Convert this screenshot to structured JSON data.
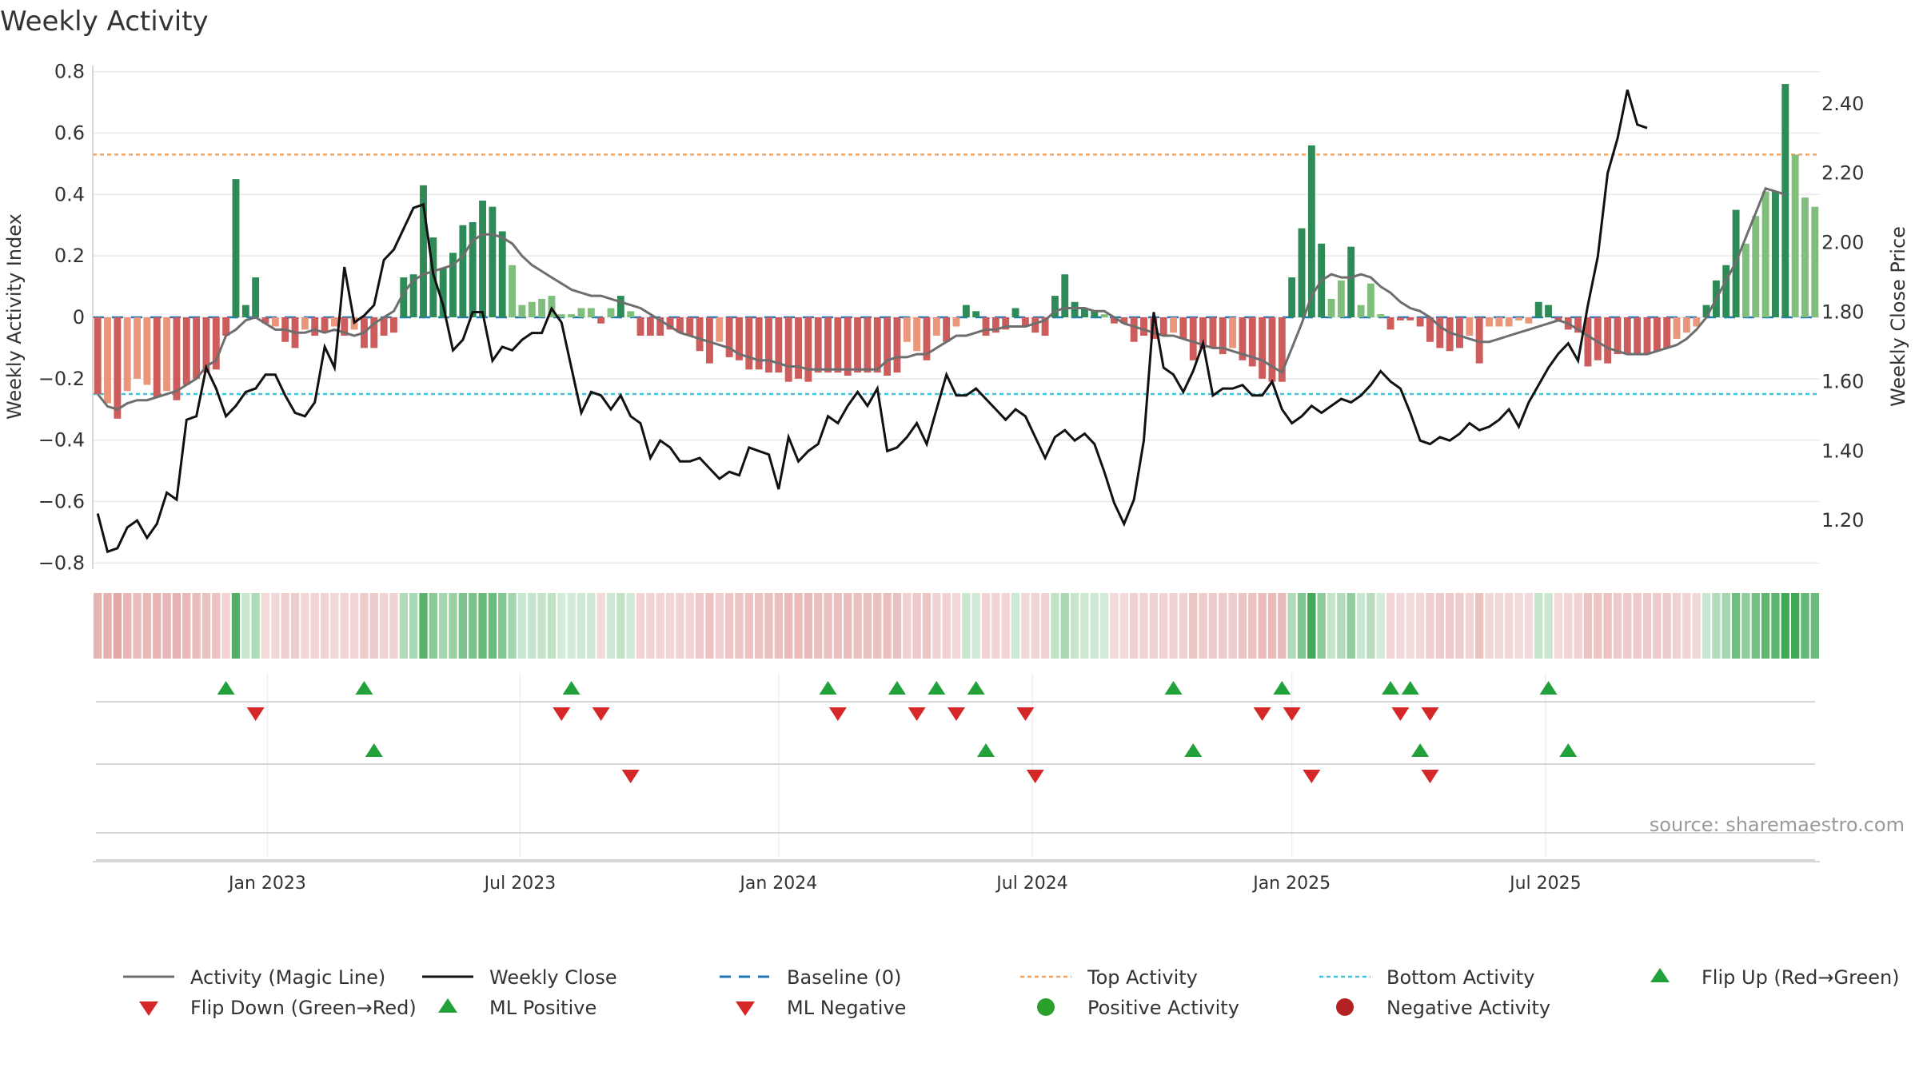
{
  "chart_data": {
    "type": "bar",
    "title": "Weekly Activity",
    "ylabel": "Weekly Activity Index",
    "y2label": "Weekly Close Price",
    "ylim": [
      -0.82,
      0.82
    ],
    "y2lim": [
      1.06,
      2.51
    ],
    "y_ticks": [
      0.8,
      0.6,
      0.4,
      0.2,
      0,
      -0.2,
      -0.4,
      -0.6,
      -0.8
    ],
    "y_tick_labels": [
      "0.8",
      "0.6",
      "0.4",
      "0.2",
      "0",
      "−0.2",
      "−0.4",
      "−0.6",
      "−0.8"
    ],
    "y2_ticks": [
      2.4,
      2.2,
      2.0,
      1.8,
      1.6,
      1.4,
      1.2
    ],
    "y2_tick_labels": [
      "2.40",
      "2.20",
      "2.00",
      "1.80",
      "1.60",
      "1.40",
      "1.20"
    ],
    "x_ticks": [
      17.2,
      42.8,
      69.0,
      94.7,
      121.0,
      146.7
    ],
    "x_tick_labels": [
      "Jan 2023",
      "Jul 2023",
      "Jan 2024",
      "Jul 2024",
      "Jan 2025",
      "Jul 2025"
    ],
    "top_activity": 0.53,
    "bottom_activity": -0.25,
    "baseline": 0,
    "source": "source: sharemaestro.com",
    "colors": {
      "strong_pos": "#2e8b57",
      "weak_pos": "#7fbf7b",
      "strong_neg": "#cd5c5c",
      "weak_neg": "#e9967a",
      "close": "#111111",
      "magic": "#6e6e6e",
      "top": "#f4a460",
      "bottom": "#40c4d8",
      "baseline": "#1f77b4",
      "up": "#22a03a",
      "down": "#d62728",
      "grid": "#e8e8e8"
    },
    "activity": [
      -0.25,
      -0.28,
      -0.33,
      -0.24,
      -0.2,
      -0.22,
      -0.26,
      -0.24,
      -0.27,
      -0.22,
      -0.2,
      -0.18,
      -0.17,
      -0.06,
      0.45,
      0.04,
      0.13,
      -0.02,
      -0.03,
      -0.08,
      -0.1,
      -0.04,
      -0.06,
      -0.05,
      -0.03,
      -0.06,
      -0.04,
      -0.1,
      -0.1,
      -0.06,
      -0.05,
      0.13,
      0.14,
      0.43,
      0.26,
      0.16,
      0.21,
      0.3,
      0.31,
      0.38,
      0.36,
      0.28,
      0.17,
      0.04,
      0.05,
      0.06,
      0.07,
      0.01,
      0.01,
      0.03,
      0.03,
      -0.02,
      0.03,
      0.07,
      0.02,
      -0.06,
      -0.06,
      -0.06,
      -0.04,
      -0.05,
      -0.06,
      -0.11,
      -0.15,
      -0.08,
      -0.13,
      -0.14,
      -0.17,
      -0.17,
      -0.18,
      -0.18,
      -0.21,
      -0.2,
      -0.21,
      -0.18,
      -0.18,
      -0.18,
      -0.19,
      -0.18,
      -0.18,
      -0.18,
      -0.19,
      -0.18,
      -0.08,
      -0.11,
      -0.14,
      -0.06,
      -0.08,
      -0.03,
      0.04,
      0.02,
      -0.06,
      -0.05,
      -0.04,
      0.03,
      -0.03,
      -0.05,
      -0.06,
      0.07,
      0.14,
      0.05,
      0.03,
      0.02,
      0.01,
      -0.02,
      -0.02,
      -0.08,
      -0.06,
      -0.07,
      -0.06,
      -0.05,
      -0.07,
      -0.14,
      -0.1,
      -0.1,
      -0.12,
      -0.1,
      -0.14,
      -0.16,
      -0.2,
      -0.21,
      -0.21,
      0.13,
      0.29,
      0.56,
      0.24,
      0.06,
      0.12,
      0.23,
      0.04,
      0.11,
      0.01,
      -0.04,
      -0.01,
      -0.01,
      -0.03,
      -0.08,
      -0.1,
      -0.11,
      -0.1,
      -0.06,
      -0.15,
      -0.03,
      -0.03,
      -0.03,
      -0.01,
      -0.02,
      0.05,
      0.04,
      -0.01,
      -0.04,
      -0.05,
      -0.16,
      -0.14,
      -0.15,
      -0.12,
      -0.12,
      -0.12,
      -0.12,
      -0.11,
      -0.1,
      -0.07,
      -0.05,
      -0.03,
      0.04,
      0.12,
      0.17,
      0.35,
      0.24,
      0.33,
      0.41,
      0.41,
      0.76,
      0.53,
      0.39,
      0.36
    ],
    "close": [
      1.22,
      1.11,
      1.12,
      1.18,
      1.2,
      1.15,
      1.19,
      1.28,
      1.26,
      1.49,
      1.5,
      1.64,
      1.58,
      1.5,
      1.53,
      1.57,
      1.58,
      1.62,
      1.62,
      1.56,
      1.51,
      1.5,
      1.54,
      1.7,
      1.64,
      1.93,
      1.77,
      1.79,
      1.82,
      1.95,
      1.98,
      2.04,
      2.1,
      2.11,
      1.91,
      1.82,
      1.69,
      1.72,
      1.8,
      1.8,
      1.66,
      1.7,
      1.69,
      1.72,
      1.74,
      1.74,
      1.81,
      1.77,
      1.64,
      1.51,
      1.57,
      1.56,
      1.52,
      1.56,
      1.5,
      1.48,
      1.38,
      1.43,
      1.41,
      1.37,
      1.37,
      1.38,
      1.35,
      1.32,
      1.34,
      1.33,
      1.41,
      1.4,
      1.39,
      1.29,
      1.44,
      1.37,
      1.4,
      1.42,
      1.5,
      1.48,
      1.53,
      1.57,
      1.53,
      1.58,
      1.4,
      1.41,
      1.44,
      1.48,
      1.42,
      1.52,
      1.62,
      1.56,
      1.56,
      1.58,
      1.55,
      1.52,
      1.49,
      1.52,
      1.5,
      1.44,
      1.38,
      1.44,
      1.46,
      1.43,
      1.45,
      1.42,
      1.34,
      1.25,
      1.19,
      1.26,
      1.43,
      1.8,
      1.64,
      1.62,
      1.57,
      1.63,
      1.71,
      1.56,
      1.58,
      1.58,
      1.59,
      1.56,
      1.56,
      1.6,
      1.52,
      1.48,
      1.5,
      1.53,
      1.51,
      1.53,
      1.55,
      1.54,
      1.56,
      1.59,
      1.63,
      1.6,
      1.58,
      1.51,
      1.43,
      1.42,
      1.44,
      1.43,
      1.45,
      1.48,
      1.46,
      1.47,
      1.49,
      1.52,
      1.47,
      1.54,
      1.59,
      1.64,
      1.68,
      1.71,
      1.66,
      1.82,
      1.96,
      2.2,
      2.3,
      2.44,
      2.34,
      2.33
    ],
    "magic_line": [
      -0.25,
      -0.29,
      -0.3,
      -0.28,
      -0.27,
      -0.27,
      -0.26,
      -0.25,
      -0.24,
      -0.22,
      -0.2,
      -0.16,
      -0.14,
      -0.06,
      -0.04,
      -0.01,
      0.0,
      -0.02,
      -0.04,
      -0.04,
      -0.05,
      -0.05,
      -0.04,
      -0.05,
      -0.04,
      -0.05,
      -0.06,
      -0.05,
      -0.02,
      0.0,
      0.02,
      0.08,
      0.12,
      0.14,
      0.15,
      0.16,
      0.17,
      0.2,
      0.25,
      0.27,
      0.27,
      0.26,
      0.24,
      0.2,
      0.17,
      0.15,
      0.13,
      0.11,
      0.09,
      0.08,
      0.07,
      0.07,
      0.06,
      0.05,
      0.04,
      0.03,
      0.01,
      -0.01,
      -0.03,
      -0.05,
      -0.06,
      -0.07,
      -0.08,
      -0.09,
      -0.1,
      -0.12,
      -0.13,
      -0.14,
      -0.14,
      -0.15,
      -0.16,
      -0.16,
      -0.17,
      -0.17,
      -0.17,
      -0.17,
      -0.17,
      -0.17,
      -0.17,
      -0.17,
      -0.14,
      -0.13,
      -0.13,
      -0.12,
      -0.12,
      -0.1,
      -0.08,
      -0.06,
      -0.06,
      -0.05,
      -0.04,
      -0.04,
      -0.03,
      -0.03,
      -0.03,
      -0.02,
      -0.01,
      0.02,
      0.03,
      0.03,
      0.03,
      0.02,
      0.02,
      0.0,
      -0.02,
      -0.03,
      -0.04,
      -0.05,
      -0.06,
      -0.06,
      -0.07,
      -0.08,
      -0.09,
      -0.1,
      -0.1,
      -0.11,
      -0.12,
      -0.13,
      -0.14,
      -0.16,
      -0.18,
      -0.1,
      -0.02,
      0.07,
      0.12,
      0.14,
      0.13,
      0.13,
      0.14,
      0.13,
      0.1,
      0.08,
      0.05,
      0.03,
      0.02,
      0.0,
      -0.03,
      -0.05,
      -0.06,
      -0.07,
      -0.08,
      -0.08,
      -0.07,
      -0.06,
      -0.05,
      -0.04,
      -0.03,
      -0.02,
      -0.01,
      -0.02,
      -0.04,
      -0.06,
      -0.08,
      -0.1,
      -0.11,
      -0.12,
      -0.12,
      -0.12,
      -0.11,
      -0.1,
      -0.09,
      -0.07,
      -0.04,
      0.0,
      0.06,
      0.12,
      0.18,
      0.26,
      0.34,
      0.42,
      0.41,
      0.4
    ],
    "flip_up": [
      13,
      27,
      48,
      74,
      81,
      85,
      89,
      109,
      120,
      131,
      133,
      147
    ],
    "flip_down": [
      16,
      47,
      51,
      75,
      83,
      87,
      94,
      118,
      121,
      132,
      135
    ],
    "ml_positive": [
      28,
      90,
      111,
      134,
      149
    ],
    "ml_negative": [
      54,
      95,
      123,
      135
    ],
    "legend": [
      {
        "label": "Activity (Magic Line)",
        "symbol": "line-grey"
      },
      {
        "label": "Weekly Close",
        "symbol": "line-black"
      },
      {
        "label": "Baseline (0)",
        "symbol": "dash-blue"
      },
      {
        "label": "Top Activity",
        "symbol": "dot-orange"
      },
      {
        "label": "Bottom Activity",
        "symbol": "dot-cyan"
      },
      {
        "label": "Flip Up (Red→Green)",
        "symbol": "tri-up-green"
      },
      {
        "label": "Flip Down (Green→Red)",
        "symbol": "tri-down-red"
      },
      {
        "label": "ML Positive",
        "symbol": "tri-up-green"
      },
      {
        "label": "ML Negative",
        "symbol": "tri-down-red"
      },
      {
        "label": "Positive Activity",
        "symbol": "circle-green"
      },
      {
        "label": "Negative Activity",
        "symbol": "circle-red"
      }
    ]
  }
}
